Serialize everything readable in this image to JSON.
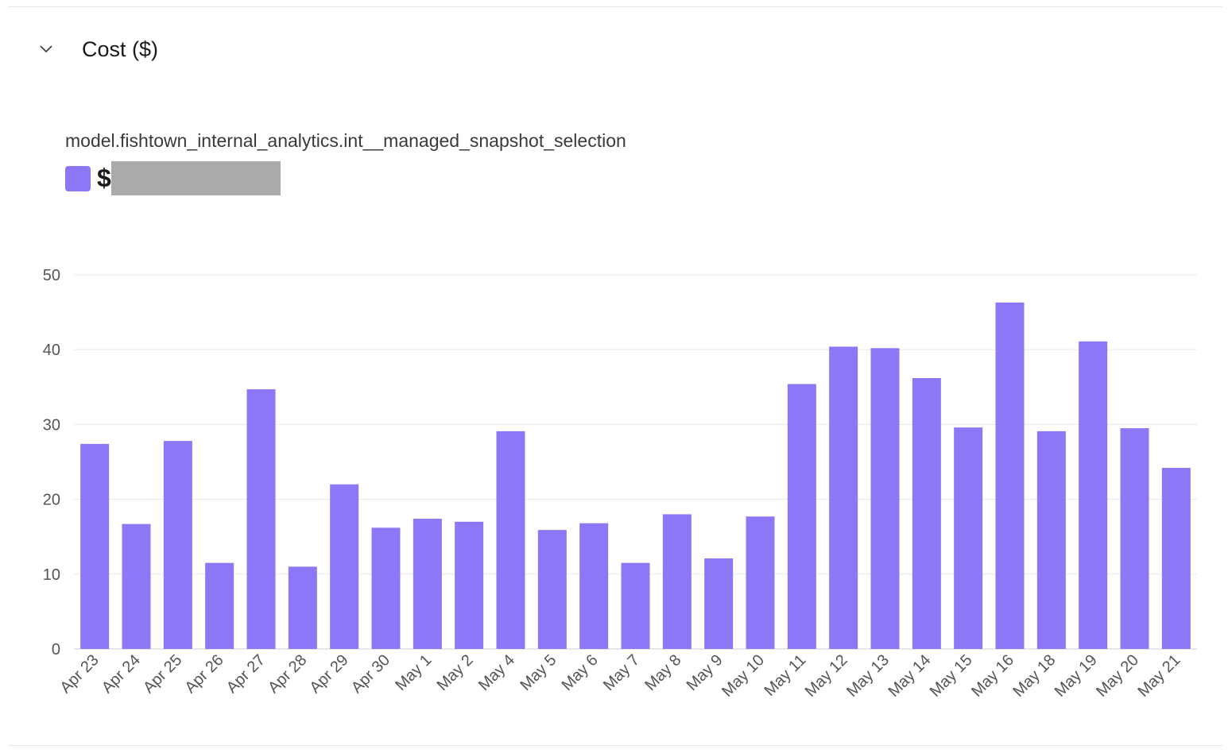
{
  "section": {
    "title": "Cost ($)",
    "collapse_icon": "chevron-down-icon"
  },
  "model_name": "model.fishtown_internal_analytics.int__managed_snapshot_selection",
  "legend": {
    "value_prefix": "$",
    "color": "#8b78f6"
  },
  "chart_data": {
    "type": "bar",
    "categories": [
      "Apr 23",
      "Apr 24",
      "Apr 25",
      "Apr 26",
      "Apr 27",
      "Apr 28",
      "Apr 29",
      "Apr 30",
      "May 1",
      "May 2",
      "May 4",
      "May 5",
      "May 6",
      "May 7",
      "May 8",
      "May 9",
      "May 10",
      "May 11",
      "May 12",
      "May 13",
      "May 14",
      "May 15",
      "May 16",
      "May 18",
      "May 19",
      "May 20",
      "May 21"
    ],
    "values": [
      27.4,
      16.7,
      27.8,
      11.5,
      34.7,
      11.0,
      22.0,
      16.2,
      17.4,
      17.0,
      29.1,
      15.9,
      16.8,
      11.5,
      18.0,
      12.1,
      17.7,
      35.4,
      40.4,
      40.2,
      36.2,
      29.6,
      46.3,
      29.1,
      41.1,
      29.5,
      24.2
    ],
    "ylim": [
      0,
      50
    ],
    "yticks": [
      0,
      10,
      20,
      30,
      40,
      50
    ],
    "grid": true,
    "color": "#8b78f6"
  }
}
